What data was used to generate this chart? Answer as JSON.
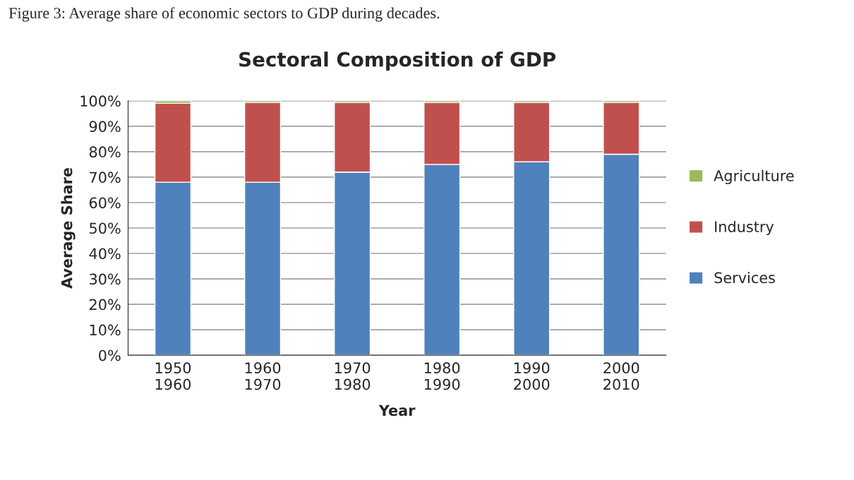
{
  "chart_data": {
    "type": "bar",
    "title": "Sectoral Composition of GDP",
    "xlabel": "Year",
    "ylabel": "Average Share",
    "annotations": [
      "Figure 3: Average share of economic sectors to GDP during decades."
    ],
    "categories": [
      "1950\n1960",
      "1960\n1970",
      "1970\n1980",
      "1980\n1990",
      "1990\n2000",
      "2000\n2010"
    ],
    "stacked": true,
    "series": [
      {
        "name": "Services",
        "color": "#4f81bd",
        "values": [
          68,
          68,
          72,
          75,
          76,
          79
        ]
      },
      {
        "name": "Industry",
        "color": "#c0504d",
        "values": [
          31,
          31.3,
          27.3,
          24.3,
          23.3,
          20.3
        ]
      },
      {
        "name": "Agriculture",
        "color": "#9bbb59",
        "values": [
          1,
          0.7,
          0.7,
          0.7,
          0.7,
          0.7
        ]
      }
    ],
    "ylim": [
      0,
      100
    ],
    "yticks": [
      {
        "value": 0,
        "label": "0%"
      },
      {
        "value": 10,
        "label": "10%"
      },
      {
        "value": 20,
        "label": "20%"
      },
      {
        "value": 30,
        "label": "30%"
      },
      {
        "value": 40,
        "label": "40%"
      },
      {
        "value": 50,
        "label": "50%"
      },
      {
        "value": 60,
        "label": "60%"
      },
      {
        "value": 70,
        "label": "70%"
      },
      {
        "value": 80,
        "label": "80%"
      },
      {
        "value": 90,
        "label": "90%"
      },
      {
        "value": 100,
        "label": "100%"
      }
    ],
    "grid": "y",
    "legend": "right"
  }
}
